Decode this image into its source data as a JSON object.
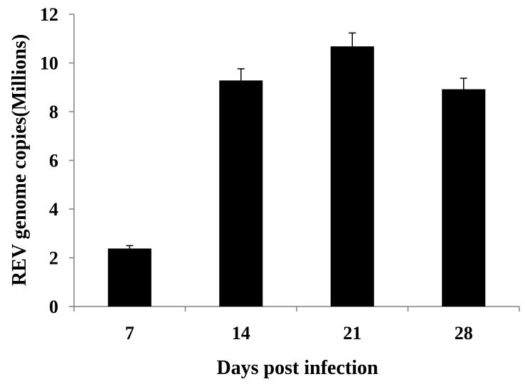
{
  "chart_data": {
    "type": "bar",
    "title": "",
    "xlabel": "Days post infection",
    "ylabel": "REV genome copies(Millions)",
    "categories": [
      "7",
      "14",
      "21",
      "28"
    ],
    "values": [
      2.38,
      9.28,
      10.68,
      8.92
    ],
    "error_bars": [
      0.12,
      0.48,
      0.55,
      0.45
    ],
    "ylim": [
      0,
      12
    ],
    "yticks": [
      "0",
      "2",
      "4",
      "6",
      "8",
      "10",
      "12"
    ],
    "ytick_values": [
      0,
      2,
      4,
      6,
      8,
      10,
      12
    ],
    "grid": false,
    "legend": "none",
    "colors": {
      "bar": "#000000",
      "axis": "#808080",
      "text": "#000000"
    }
  }
}
